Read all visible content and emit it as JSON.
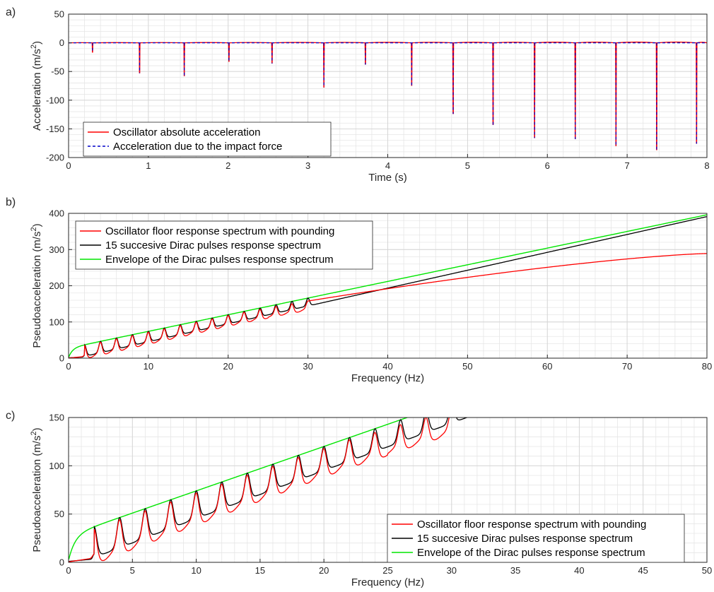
{
  "chart_data": [
    {
      "panel": "a)",
      "type": "line",
      "xlabel": "Time (s)",
      "ylabel_base": "Acceleration (m/s",
      "ylabel_exp": "2",
      "ylabel_end": ")",
      "xlim": [
        0,
        8
      ],
      "ylim": [
        -200,
        50
      ],
      "xticks": [
        0,
        1,
        2,
        3,
        4,
        5,
        6,
        7,
        8
      ],
      "yticks": [
        -200,
        -150,
        -100,
        -50,
        0,
        50
      ],
      "grid": "minor",
      "legend_position": "bottom-left",
      "impacts": [
        {
          "t": 0.3,
          "a": -17
        },
        {
          "t": 0.89,
          "a": -53
        },
        {
          "t": 1.45,
          "a": -58
        },
        {
          "t": 2.01,
          "a": -33
        },
        {
          "t": 2.55,
          "a": -36
        },
        {
          "t": 3.2,
          "a": -78
        },
        {
          "t": 3.72,
          "a": -38
        },
        {
          "t": 4.3,
          "a": -75
        },
        {
          "t": 4.82,
          "a": -124
        },
        {
          "t": 5.32,
          "a": -143
        },
        {
          "t": 5.84,
          "a": -166
        },
        {
          "t": 6.35,
          "a": -168
        },
        {
          "t": 6.86,
          "a": -180
        },
        {
          "t": 7.37,
          "a": -187
        },
        {
          "t": 7.87,
          "a": -176
        }
      ],
      "series": [
        {
          "name": "Oscillator absolute acceleration",
          "color": "#ff0000",
          "style": "solid"
        },
        {
          "name": "Acceleration due to the impact force",
          "color": "#0000c8",
          "style": "dashed"
        }
      ]
    },
    {
      "panel": "b)",
      "type": "line",
      "xlabel": "Frequency (Hz)",
      "ylabel_base": "Pseudoacceleration (m/s",
      "ylabel_exp": "2",
      "ylabel_end": ")",
      "xlim": [
        0,
        80
      ],
      "ylim": [
        0,
        400
      ],
      "xticks": [
        0,
        10,
        20,
        30,
        40,
        50,
        60,
        70,
        80
      ],
      "yticks": [
        0,
        100,
        200,
        300,
        400
      ],
      "grid": "minor",
      "legend_position": "top-left",
      "series": [
        {
          "name": "Oscillator floor response spectrum with pounding",
          "color": "#ff0000",
          "end_value_at_80hz": 289
        },
        {
          "name": "15 succesive Dirac pulses response spectrum",
          "color": "#000000",
          "end_value_at_80hz": 391
        },
        {
          "name": "Envelope of the Dirac pulses response spectrum",
          "color": "#00e600"
        }
      ]
    },
    {
      "panel": "c)",
      "type": "line",
      "xlabel": "Frequency (Hz)",
      "ylabel_base": "Pseudoacceleration (m/s",
      "ylabel_exp": "2",
      "ylabel_end": ")",
      "xlim": [
        0,
        50
      ],
      "ylim": [
        0,
        150
      ],
      "xticks": [
        0,
        5,
        10,
        15,
        20,
        25,
        30,
        35,
        40,
        45,
        50
      ],
      "yticks": [
        0,
        50,
        100,
        150
      ],
      "grid": "minor",
      "legend_position": "bottom-right",
      "peak_frequencies_hz": [
        2,
        4,
        6,
        8,
        10,
        12,
        14,
        16,
        18,
        20,
        22,
        24,
        26,
        28,
        30
      ],
      "series": [
        {
          "name": "Oscillator floor response spectrum with pounding",
          "color": "#ff0000"
        },
        {
          "name": "15 succesive Dirac pulses response spectrum",
          "color": "#000000"
        },
        {
          "name": "Envelope of the Dirac pulses response spectrum",
          "color": "#00e600"
        }
      ]
    }
  ]
}
